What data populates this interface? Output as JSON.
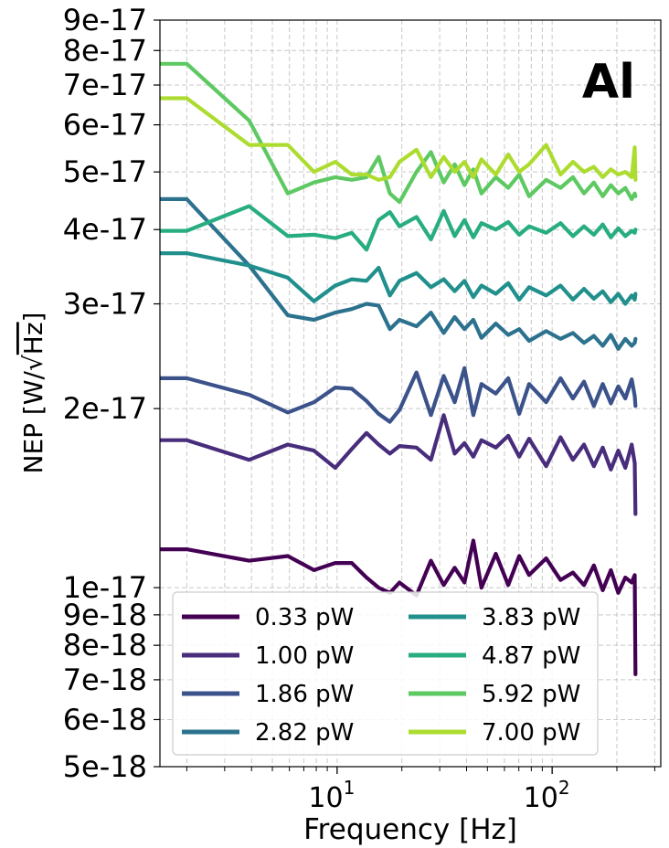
{
  "chart_data": {
    "type": "line",
    "title": "",
    "annotation": "Al",
    "xlabel": "Frequency [Hz]",
    "ylabel_prefix": "NEP [W/",
    "ylabel_sqrt": "√",
    "ylabel_radicand": "Hz",
    "ylabel_suffix": "]",
    "xscale": "log",
    "yscale": "log",
    "xlim": [
      1.5,
      320
    ],
    "ylim": [
      5e-18,
      9e-17
    ],
    "grid": true,
    "legend_position": "lower-left",
    "x_major_ticks": [
      {
        "value": 10,
        "base": "10",
        "exp": "1"
      },
      {
        "value": 100,
        "base": "10",
        "exp": "2"
      }
    ],
    "y_ticks": [
      {
        "value": 9e-17,
        "label": "9e-17"
      },
      {
        "value": 8e-17,
        "label": "8e-17"
      },
      {
        "value": 7e-17,
        "label": "7e-17"
      },
      {
        "value": 6e-17,
        "label": "6e-17"
      },
      {
        "value": 5e-17,
        "label": "5e-17"
      },
      {
        "value": 4e-17,
        "label": "4e-17"
      },
      {
        "value": 3e-17,
        "label": "3e-17"
      },
      {
        "value": 2e-17,
        "label": "2e-17"
      },
      {
        "value": 1e-17,
        "label": "1e-17"
      },
      {
        "value": 9e-18,
        "label": "9e-18"
      },
      {
        "value": 8e-18,
        "label": "8e-18"
      },
      {
        "value": 7e-18,
        "label": "7e-18"
      },
      {
        "value": 6e-18,
        "label": "6e-18"
      },
      {
        "value": 5e-18,
        "label": "5e-18"
      }
    ],
    "series": [
      {
        "name": "0.33 pW",
        "color": "#440154",
        "x": [
          1.5,
          2.0,
          3.9,
          5.9,
          7.8,
          9.8,
          11.7,
          13.7,
          15.6,
          17.6,
          19.5,
          23.4,
          27.3,
          31.3,
          35.2,
          39.1,
          43.0,
          46.9,
          54.7,
          62.5,
          70.3,
          78.1,
          93.8,
          109.4,
          125.0,
          140.6,
          156.3,
          171.9,
          187.5,
          203.1,
          218.8,
          234.4,
          242.2,
          244.0
        ],
        "values": [
          1.16e-17,
          1.16e-17,
          1.11e-17,
          1.13e-17,
          1.07e-17,
          1.1e-17,
          1.1e-17,
          1.04e-17,
          1e-17,
          9.8e-18,
          1.02e-17,
          9.7e-18,
          1.11e-17,
          1.01e-17,
          1.08e-17,
          1.02e-17,
          1.2e-17,
          1e-17,
          1.14e-17,
          1.01e-17,
          1.13e-17,
          1.05e-17,
          1.12e-17,
          1.03e-17,
          1.06e-17,
          1.01e-17,
          1.09e-17,
          9.9e-18,
          1.07e-17,
          9.8e-18,
          1.04e-17,
          1.02e-17,
          1.05e-17,
          7.15e-18
        ]
      },
      {
        "name": "1.00 pW",
        "color": "#472d7b",
        "x": [
          1.5,
          2.0,
          3.9,
          5.9,
          7.8,
          9.8,
          11.7,
          13.7,
          15.6,
          17.6,
          19.5,
          23.4,
          27.3,
          31.3,
          35.2,
          39.1,
          43.0,
          46.9,
          54.7,
          62.5,
          70.3,
          78.1,
          93.8,
          109.4,
          125.0,
          140.6,
          156.3,
          171.9,
          187.5,
          203.1,
          218.8,
          234.4,
          242.2,
          244.0
        ],
        "values": [
          1.77e-17,
          1.77e-17,
          1.64e-17,
          1.74e-17,
          1.7e-17,
          1.59e-17,
          1.71e-17,
          1.82e-17,
          1.74e-17,
          1.68e-17,
          1.73e-17,
          1.72e-17,
          1.64e-17,
          1.95e-17,
          1.68e-17,
          1.75e-17,
          1.66e-17,
          1.77e-17,
          1.72e-17,
          1.8e-17,
          1.66e-17,
          1.78e-17,
          1.6e-17,
          1.79e-17,
          1.64e-17,
          1.74e-17,
          1.6e-17,
          1.72e-17,
          1.58e-17,
          1.7e-17,
          1.59e-17,
          1.74e-17,
          1.62e-17,
          1.33e-17
        ]
      },
      {
        "name": "1.86 pW",
        "color": "#3b528b",
        "x": [
          1.5,
          2.0,
          3.9,
          5.9,
          7.8,
          9.8,
          11.7,
          13.7,
          15.6,
          17.6,
          19.5,
          23.4,
          27.3,
          31.3,
          35.2,
          39.1,
          43.0,
          46.9,
          54.7,
          62.5,
          70.3,
          78.1,
          93.8,
          109.4,
          125.0,
          140.6,
          156.3,
          171.9,
          187.5,
          203.1,
          218.8,
          234.4,
          242.2,
          244.0
        ],
        "values": [
          2.25e-17,
          2.25e-17,
          2.11e-17,
          1.97e-17,
          2.05e-17,
          2.17e-17,
          2.16e-17,
          2.06e-17,
          1.96e-17,
          1.9e-17,
          1.99e-17,
          2.3e-17,
          1.95e-17,
          2.27e-17,
          2.05e-17,
          2.34e-17,
          1.95e-17,
          2.2e-17,
          2.12e-17,
          2.25e-17,
          1.96e-17,
          2.2e-17,
          2.05e-17,
          2.25e-17,
          2.08e-17,
          2.22e-17,
          2.02e-17,
          2.2e-17,
          2.04e-17,
          2.18e-17,
          2.08e-17,
          2.24e-17,
          2.1e-17,
          2.02e-17
        ]
      },
      {
        "name": "2.82 pW",
        "color": "#2c728e",
        "x": [
          1.5,
          2.0,
          3.9,
          5.9,
          7.8,
          9.8,
          11.7,
          13.7,
          15.6,
          17.6,
          19.5,
          23.4,
          27.3,
          31.3,
          35.2,
          39.1,
          43.0,
          46.9,
          54.7,
          62.5,
          70.3,
          78.1,
          93.8,
          109.4,
          125.0,
          140.6,
          156.3,
          171.9,
          187.5,
          203.1,
          218.8,
          234.4,
          242.2,
          244.0
        ],
        "values": [
          4.5e-17,
          4.5e-17,
          3.48e-17,
          2.87e-17,
          2.82e-17,
          2.9e-17,
          2.94e-17,
          3e-17,
          2.98e-17,
          2.72e-17,
          2.82e-17,
          2.75e-17,
          2.9e-17,
          2.68e-17,
          2.85e-17,
          2.72e-17,
          2.82e-17,
          2.63e-17,
          2.78e-17,
          2.66e-17,
          2.72e-17,
          2.6e-17,
          2.7e-17,
          2.62e-17,
          2.68e-17,
          2.58e-17,
          2.65e-17,
          2.55e-17,
          2.66e-17,
          2.52e-17,
          2.62e-17,
          2.55e-17,
          2.58e-17,
          2.62e-17
        ]
      },
      {
        "name": "3.83 pW",
        "color": "#21908d",
        "x": [
          1.5,
          2.0,
          3.9,
          5.9,
          7.8,
          9.8,
          11.7,
          13.7,
          15.6,
          17.6,
          19.5,
          23.4,
          27.3,
          31.3,
          35.2,
          39.1,
          43.0,
          46.9,
          54.7,
          62.5,
          70.3,
          78.1,
          93.8,
          109.4,
          125.0,
          140.6,
          156.3,
          171.9,
          187.5,
          203.1,
          218.8,
          234.4,
          242.2,
          244.0
        ],
        "values": [
          3.65e-17,
          3.65e-17,
          3.48e-17,
          3.32e-17,
          3.03e-17,
          3.22e-17,
          3.3e-17,
          3.28e-17,
          3.45e-17,
          3.1e-17,
          3.28e-17,
          3.38e-17,
          3.2e-17,
          3.3e-17,
          3.15e-17,
          3.28e-17,
          3.08e-17,
          3.22e-17,
          3.12e-17,
          3.25e-17,
          3.05e-17,
          3.2e-17,
          3.1e-17,
          3.22e-17,
          3.05e-17,
          3.18e-17,
          3.06e-17,
          3.15e-17,
          3.02e-17,
          3.12e-17,
          3e-17,
          3.1e-17,
          3.05e-17,
          3.12e-17
        ]
      },
      {
        "name": "4.87 pW",
        "color": "#27ad81",
        "x": [
          1.5,
          2.0,
          3.9,
          5.9,
          7.8,
          9.8,
          11.7,
          13.7,
          15.6,
          17.6,
          19.5,
          23.4,
          27.3,
          31.3,
          35.2,
          39.1,
          43.0,
          46.9,
          54.7,
          62.5,
          70.3,
          78.1,
          93.8,
          109.4,
          125.0,
          140.6,
          156.3,
          171.9,
          187.5,
          203.1,
          218.8,
          234.4,
          242.2,
          244.0
        ],
        "values": [
          3.98e-17,
          3.98e-17,
          4.38e-17,
          3.9e-17,
          3.92e-17,
          3.87e-17,
          3.95e-17,
          3.7e-17,
          4.15e-17,
          4.28e-17,
          4.05e-17,
          4.2e-17,
          3.85e-17,
          4.3e-17,
          3.9e-17,
          4.15e-17,
          3.88e-17,
          4.1e-17,
          4e-17,
          4.12e-17,
          3.92e-17,
          4.05e-17,
          3.95e-17,
          4.1e-17,
          3.9e-17,
          4.05e-17,
          3.92e-17,
          4.08e-17,
          3.88e-17,
          4.02e-17,
          3.9e-17,
          3.98e-17,
          3.95e-17,
          4e-17
        ]
      },
      {
        "name": "5.92 pW",
        "color": "#5ec962",
        "x": [
          1.5,
          2.0,
          3.9,
          5.9,
          7.8,
          9.8,
          11.7,
          13.7,
          15.6,
          17.6,
          19.5,
          23.4,
          27.3,
          31.3,
          35.2,
          39.1,
          43.0,
          46.9,
          54.7,
          62.5,
          70.3,
          78.1,
          93.8,
          109.4,
          125.0,
          140.6,
          156.3,
          171.9,
          187.5,
          203.1,
          218.8,
          234.4,
          242.2,
          244.0
        ],
        "values": [
          7.6e-17,
          7.6e-17,
          6.1e-17,
          4.6e-17,
          4.8e-17,
          4.9e-17,
          4.85e-17,
          4.9e-17,
          5.3e-17,
          4.6e-17,
          4.45e-17,
          5e-17,
          5.4e-17,
          4.8e-17,
          5.15e-17,
          4.75e-17,
          5.05e-17,
          4.6e-17,
          4.9e-17,
          4.7e-17,
          4.95e-17,
          4.55e-17,
          4.85e-17,
          4.7e-17,
          4.9e-17,
          4.6e-17,
          4.8e-17,
          4.55e-17,
          4.75e-17,
          4.6e-17,
          4.7e-17,
          4.5e-17,
          4.6e-17,
          4.55e-17
        ]
      },
      {
        "name": "7.00 pW",
        "color": "#addc30",
        "x": [
          1.5,
          2.0,
          3.9,
          5.9,
          7.8,
          9.8,
          11.7,
          13.7,
          15.6,
          17.6,
          19.5,
          23.4,
          27.3,
          31.3,
          35.2,
          39.1,
          43.0,
          46.9,
          54.7,
          62.5,
          70.3,
          78.1,
          93.8,
          109.4,
          125.0,
          140.6,
          156.3,
          171.9,
          187.5,
          203.1,
          218.8,
          234.4,
          242.2,
          244.0
        ],
        "values": [
          6.65e-17,
          6.65e-17,
          5.55e-17,
          5.55e-17,
          5e-17,
          5.2e-17,
          4.95e-17,
          4.95e-17,
          4.85e-17,
          4.9e-17,
          5.2e-17,
          5.45e-17,
          4.9e-17,
          5.3e-17,
          5e-17,
          5.2e-17,
          4.9e-17,
          5.25e-17,
          4.95e-17,
          5.35e-17,
          5e-17,
          5.15e-17,
          5.55e-17,
          4.95e-17,
          5.2e-17,
          5e-17,
          5.1e-17,
          4.9e-17,
          5.05e-17,
          4.95e-17,
          5e-17,
          4.9e-17,
          5.5e-17,
          4.85e-17
        ]
      }
    ]
  }
}
